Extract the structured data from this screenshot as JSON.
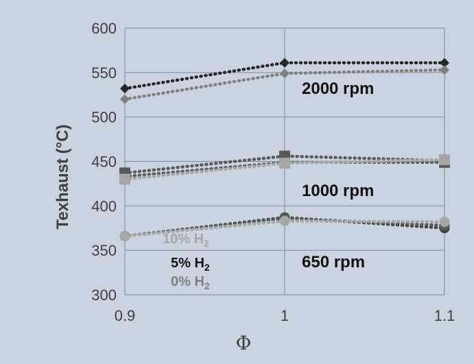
{
  "chart_data": {
    "type": "line",
    "xlabel": "Φ",
    "ylabel": "Texhaust (°C)",
    "xlim": [
      0.9,
      1.1
    ],
    "ylim": [
      300,
      600
    ],
    "x_ticks": [
      "0.9",
      "1",
      "1.1"
    ],
    "y_ticks": [
      "300",
      "350",
      "400",
      "450",
      "500",
      "550",
      "600"
    ],
    "x": [
      0.9,
      1.0,
      1.1
    ],
    "grid": true,
    "series": [
      {
        "group": "2000 rpm",
        "h2": "0%",
        "marker": "diamond",
        "color": "#262626",
        "values": [
          532,
          561,
          561
        ]
      },
      {
        "group": "2000 rpm",
        "h2": "5%",
        "marker": "diamond",
        "color": "#808080",
        "values": [
          520,
          549,
          553
        ]
      },
      {
        "group": "1000 rpm",
        "h2": "0%",
        "marker": "square",
        "color": "#595959",
        "values": [
          437,
          456,
          451
        ]
      },
      {
        "group": "1000 rpm",
        "h2": "5%",
        "marker": "square",
        "color": "#595959",
        "values": [
          433,
          449,
          449
        ]
      },
      {
        "group": "1000 rpm",
        "h2": "10%",
        "marker": "square",
        "color": "#a6a6a6",
        "values": [
          430,
          448,
          452
        ]
      },
      {
        "group": "650 rpm",
        "h2": "0%",
        "marker": "circle",
        "color": "#404040",
        "values": [
          366,
          387,
          375
        ]
      },
      {
        "group": "650 rpm",
        "h2": "5%",
        "marker": "circle",
        "color": "#595959",
        "values": [
          366,
          386,
          378
        ]
      },
      {
        "group": "650 rpm",
        "h2": "10%",
        "marker": "circle",
        "color": "#a6a6a6",
        "values": [
          366,
          383,
          382
        ]
      }
    ],
    "annotations": [
      "2000 rpm",
      "1000 rpm",
      "650 rpm"
    ],
    "legend": {
      "placement": "bottom-left",
      "entries": [
        {
          "prefix": "10% H",
          "sub": "2",
          "color": "#a6a6a6"
        },
        {
          "prefix": "5% H",
          "sub": "2",
          "color": "#111111"
        },
        {
          "prefix": "0% H",
          "sub": "2",
          "color": "#7f7f7f"
        }
      ]
    }
  }
}
